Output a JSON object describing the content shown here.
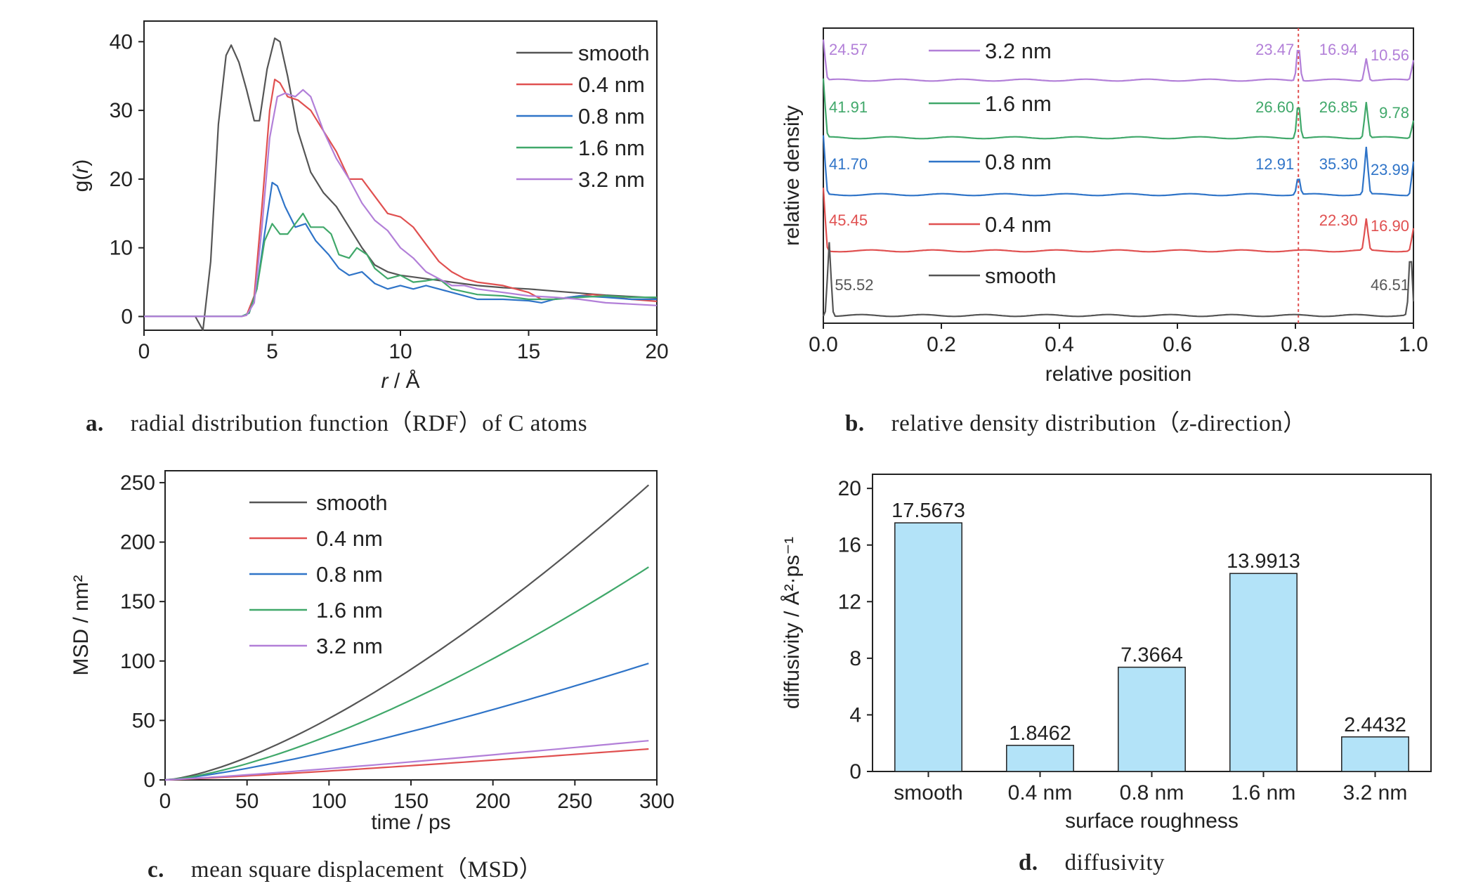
{
  "captions": {
    "a": {
      "letter": "a.",
      "text": "radial distribution function（RDF）of C atoms"
    },
    "b": {
      "letter": "b.",
      "text_pre": "relative density distribution（",
      "text_ital": "z",
      "text_post": "-direction）"
    },
    "c": {
      "letter": "c.",
      "text": "mean square displacement（MSD）"
    },
    "d": {
      "letter": "d.",
      "text": "diffusivity"
    }
  },
  "chart_data": [
    {
      "id": "a",
      "type": "line",
      "title": "",
      "xlabel": "r / Å",
      "ylabel": "g(r)",
      "xlim": [
        0,
        20
      ],
      "ylim": [
        -2,
        43
      ],
      "xticks": [
        0,
        5,
        10,
        15,
        20
      ],
      "yticks": [
        0,
        10,
        20,
        30,
        40
      ],
      "legend_position": "top-right",
      "series": [
        {
          "name": "smooth",
          "color": "#555555",
          "points": [
            [
              0,
              0
            ],
            [
              2,
              0
            ],
            [
              2.3,
              -2
            ],
            [
              2.6,
              8
            ],
            [
              2.9,
              28
            ],
            [
              3.2,
              38
            ],
            [
              3.4,
              39.5
            ],
            [
              3.7,
              37
            ],
            [
              4,
              33
            ],
            [
              4.3,
              28.5
            ],
            [
              4.5,
              28.5
            ],
            [
              4.8,
              36
            ],
            [
              5.1,
              40.5
            ],
            [
              5.3,
              40
            ],
            [
              5.6,
              35
            ],
            [
              6,
              27
            ],
            [
              6.5,
              21
            ],
            [
              7,
              18
            ],
            [
              7.5,
              16
            ],
            [
              8,
              13
            ],
            [
              8.5,
              10
            ],
            [
              9,
              7.5
            ],
            [
              9.5,
              6.5
            ],
            [
              10,
              6
            ],
            [
              11,
              5.5
            ],
            [
              12,
              5
            ],
            [
              13,
              4.5
            ],
            [
              14,
              4.2
            ],
            [
              15,
              4
            ],
            [
              16,
              3.7
            ],
            [
              17,
              3.4
            ],
            [
              18,
              3.1
            ],
            [
              19,
              2.9
            ],
            [
              20,
              2.7
            ]
          ]
        },
        {
          "name": "0.4 nm",
          "color": "#e05050",
          "points": [
            [
              0,
              0
            ],
            [
              3.8,
              0
            ],
            [
              4,
              0.2
            ],
            [
              4.3,
              3
            ],
            [
              4.6,
              16
            ],
            [
              4.9,
              30
            ],
            [
              5.1,
              34.5
            ],
            [
              5.3,
              34
            ],
            [
              5.6,
              32
            ],
            [
              6,
              31.5
            ],
            [
              6.5,
              30
            ],
            [
              7,
              27
            ],
            [
              7.5,
              24
            ],
            [
              8,
              20
            ],
            [
              8.5,
              20
            ],
            [
              9,
              17.5
            ],
            [
              9.5,
              15
            ],
            [
              10,
              14.5
            ],
            [
              10.5,
              13
            ],
            [
              11,
              10.5
            ],
            [
              11.5,
              8
            ],
            [
              12,
              6.5
            ],
            [
              12.5,
              5.5
            ],
            [
              13,
              5
            ],
            [
              14,
              4.5
            ],
            [
              15,
              3.5
            ],
            [
              15.5,
              2.5
            ],
            [
              16,
              2.5
            ],
            [
              17,
              3
            ],
            [
              17.5,
              3.2
            ],
            [
              18,
              3
            ],
            [
              19,
              2.5
            ],
            [
              20,
              2.2
            ]
          ]
        },
        {
          "name": "0.8 nm",
          "color": "#2f74c8",
          "points": [
            [
              0,
              0
            ],
            [
              3.8,
              0
            ],
            [
              4.1,
              0.5
            ],
            [
              4.4,
              4
            ],
            [
              4.7,
              12
            ],
            [
              5,
              19.5
            ],
            [
              5.2,
              19
            ],
            [
              5.5,
              16
            ],
            [
              5.9,
              13
            ],
            [
              6.3,
              13.5
            ],
            [
              6.7,
              11
            ],
            [
              7.2,
              9
            ],
            [
              7.6,
              7
            ],
            [
              8,
              6
            ],
            [
              8.5,
              6.5
            ],
            [
              9,
              4.8
            ],
            [
              9.5,
              4
            ],
            [
              10,
              4.5
            ],
            [
              10.5,
              4
            ],
            [
              11,
              4.5
            ],
            [
              11.5,
              4
            ],
            [
              12,
              3.5
            ],
            [
              12.5,
              3
            ],
            [
              13,
              2.5
            ],
            [
              14,
              2.5
            ],
            [
              15,
              2.3
            ],
            [
              15.5,
              2
            ],
            [
              16,
              2.5
            ],
            [
              17,
              3
            ],
            [
              18,
              2.8
            ],
            [
              19,
              2.5
            ],
            [
              20,
              2.5
            ]
          ]
        },
        {
          "name": "1.6 nm",
          "color": "#40a86a",
          "points": [
            [
              0,
              0
            ],
            [
              3.8,
              0
            ],
            [
              4.1,
              0.5
            ],
            [
              4.4,
              4
            ],
            [
              4.7,
              11
            ],
            [
              5,
              13.5
            ],
            [
              5.3,
              12
            ],
            [
              5.6,
              12
            ],
            [
              6,
              14
            ],
            [
              6.2,
              15
            ],
            [
              6.5,
              13
            ],
            [
              7,
              13
            ],
            [
              7.3,
              12
            ],
            [
              7.6,
              9
            ],
            [
              8,
              8.5
            ],
            [
              8.3,
              10
            ],
            [
              8.7,
              9
            ],
            [
              9,
              7
            ],
            [
              9.5,
              5.5
            ],
            [
              10,
              6
            ],
            [
              10.5,
              5
            ],
            [
              11,
              5.2
            ],
            [
              11.5,
              5.5
            ],
            [
              12,
              4
            ],
            [
              13,
              3.2
            ],
            [
              14,
              3
            ],
            [
              15,
              2.5
            ],
            [
              16,
              2.5
            ],
            [
              17,
              2.8
            ],
            [
              18,
              3
            ],
            [
              19,
              2.8
            ],
            [
              20,
              2.8
            ]
          ]
        },
        {
          "name": "3.2 nm",
          "color": "#b27fd8",
          "points": [
            [
              0,
              0
            ],
            [
              3.8,
              0
            ],
            [
              4,
              0.2
            ],
            [
              4.3,
              2
            ],
            [
              4.6,
              13
            ],
            [
              4.9,
              26
            ],
            [
              5.2,
              32
            ],
            [
              5.5,
              32.5
            ],
            [
              5.9,
              32
            ],
            [
              6.2,
              33
            ],
            [
              6.5,
              32
            ],
            [
              7,
              27
            ],
            [
              7.5,
              23
            ],
            [
              8,
              20
            ],
            [
              8.5,
              16.5
            ],
            [
              9,
              14
            ],
            [
              9.5,
              12.5
            ],
            [
              10,
              10
            ],
            [
              10.5,
              8.5
            ],
            [
              11,
              6.5
            ],
            [
              11.5,
              5.5
            ],
            [
              12,
              4.5
            ],
            [
              12.5,
              4.5
            ],
            [
              13,
              4
            ],
            [
              14,
              3.5
            ],
            [
              15,
              3
            ],
            [
              16,
              2.8
            ],
            [
              17,
              2.5
            ],
            [
              18,
              2
            ],
            [
              19,
              1.8
            ],
            [
              20,
              1.6
            ]
          ]
        }
      ]
    },
    {
      "id": "b",
      "type": "line",
      "title": "",
      "xlabel": "relative position",
      "ylabel": "relative density",
      "xlim": [
        0,
        1
      ],
      "xticks": [
        0.0,
        0.2,
        0.4,
        0.6,
        0.8,
        1.0
      ],
      "xtick_labels": [
        "0.0",
        "0.2",
        "0.4",
        "0.6",
        "0.8",
        "1.0"
      ],
      "yticks_shown": false,
      "reference_line_x": 0.805,
      "reference_line_color": "#e05050",
      "series": [
        {
          "name": "3.2 nm",
          "color": "#b27fd8",
          "annotations": [
            {
              "x": 0.0,
              "label": "24.57"
            },
            {
              "x": 0.805,
              "label": "23.47"
            },
            {
              "x": 0.92,
              "label": "16.94"
            },
            {
              "x": 1.0,
              "label": "10.56"
            }
          ],
          "peaks": [
            [
              0.0,
              1.8
            ],
            [
              0.805,
              1.6
            ],
            [
              0.92,
              1.0
            ],
            [
              1.0,
              0.9
            ]
          ]
        },
        {
          "name": "1.6 nm",
          "color": "#40a86a",
          "annotations": [
            {
              "x": 0.0,
              "label": "41.91"
            },
            {
              "x": 0.805,
              "label": "26.60"
            },
            {
              "x": 0.92,
              "label": "26.85"
            },
            {
              "x": 1.0,
              "label": "9.78"
            }
          ],
          "peaks": [
            [
              0.0,
              2.6
            ],
            [
              0.805,
              1.6
            ],
            [
              0.92,
              1.6
            ],
            [
              1.0,
              0.8
            ]
          ]
        },
        {
          "name": "0.8 nm",
          "color": "#2f74c8",
          "annotations": [
            {
              "x": 0.0,
              "label": "41.70"
            },
            {
              "x": 0.805,
              "label": "12.91"
            },
            {
              "x": 0.92,
              "label": "35.30"
            },
            {
              "x": 1.0,
              "label": "23.99"
            }
          ],
          "peaks": [
            [
              0.0,
              2.6
            ],
            [
              0.805,
              0.8
            ],
            [
              0.92,
              2.1
            ],
            [
              1.0,
              1.5
            ]
          ]
        },
        {
          "name": "0.4 nm",
          "color": "#e05050",
          "annotations": [
            {
              "x": 0.0,
              "label": "45.45"
            },
            {
              "x": 0.92,
              "label": "22.30"
            },
            {
              "x": 1.0,
              "label": "16.90"
            }
          ],
          "peaks": [
            [
              0.0,
              2.8
            ],
            [
              0.92,
              1.4
            ],
            [
              1.0,
              1.0
            ]
          ]
        },
        {
          "name": "smooth",
          "color": "#555555",
          "annotations": [
            {
              "x": 0.01,
              "label": "55.52"
            },
            {
              "x": 0.99,
              "label": "46.51"
            }
          ],
          "peaks": [
            [
              0.01,
              3.3
            ],
            [
              0.995,
              2.8
            ]
          ]
        }
      ]
    },
    {
      "id": "c",
      "type": "line",
      "title": "",
      "xlabel": "time / ps",
      "ylabel": "MSD / nm²",
      "xlim": [
        0,
        300
      ],
      "ylim": [
        0,
        260
      ],
      "xticks": [
        0,
        50,
        100,
        150,
        200,
        250,
        300
      ],
      "yticks": [
        0,
        50,
        100,
        150,
        200,
        250
      ],
      "legend_position": "top-left",
      "series": [
        {
          "name": "smooth",
          "color": "#555555",
          "x_end": 295,
          "y_end": 248,
          "exponent": 1.45
        },
        {
          "name": "0.4 nm",
          "color": "#e05050",
          "x_end": 295,
          "y_end": 26,
          "exponent": 1.15
        },
        {
          "name": "0.8 nm",
          "color": "#2f74c8",
          "x_end": 295,
          "y_end": 98,
          "exponent": 1.3
        },
        {
          "name": "1.6 nm",
          "color": "#40a86a",
          "x_end": 295,
          "y_end": 179,
          "exponent": 1.45
        },
        {
          "name": "3.2 nm",
          "color": "#b27fd8",
          "x_end": 295,
          "y_end": 33,
          "exponent": 1.15
        }
      ]
    },
    {
      "id": "d",
      "type": "bar",
      "title": "",
      "xlabel": "surface roughness",
      "ylabel": "diffusivity / Å²·ps⁻¹",
      "ylim": [
        0,
        21
      ],
      "yticks": [
        0,
        4,
        8,
        12,
        16,
        20
      ],
      "bar_color": "#b3e3f8",
      "categories": [
        "smooth",
        "0.4 nm",
        "0.8 nm",
        "1.6 nm",
        "3.2 nm"
      ],
      "values": [
        17.5673,
        1.8462,
        7.3664,
        13.9913,
        2.4432
      ],
      "value_labels": [
        "17.5673",
        "1.8462",
        "7.3664",
        "13.9913",
        "2.4432"
      ]
    }
  ]
}
